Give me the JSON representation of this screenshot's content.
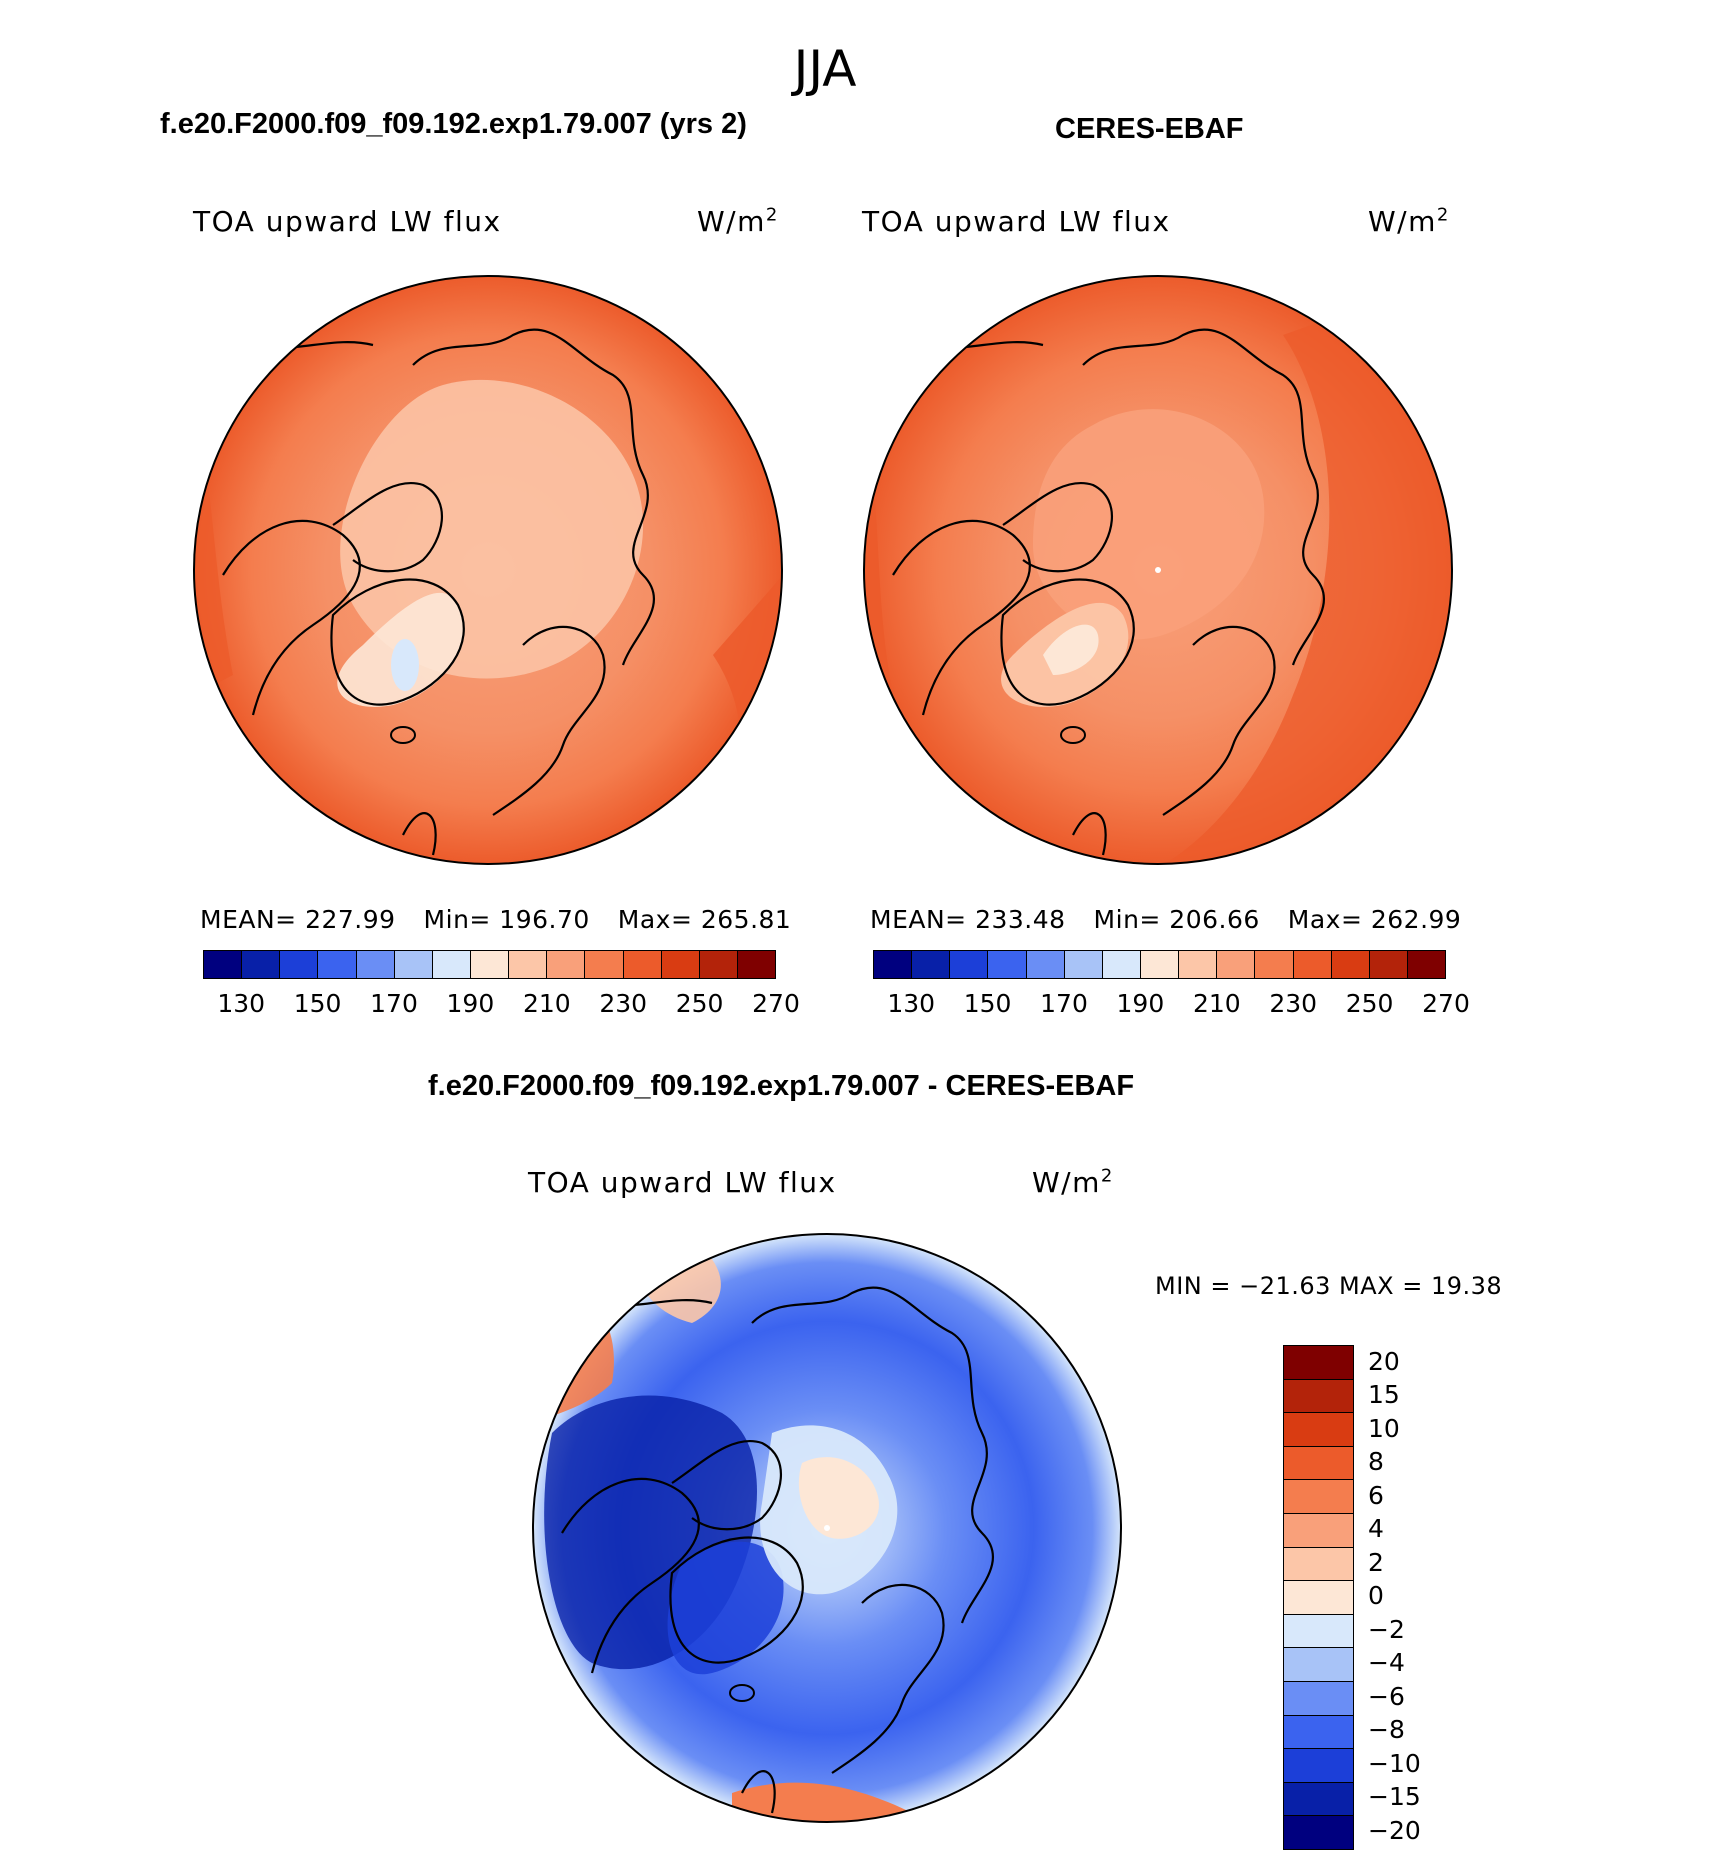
{
  "season": "JJA",
  "panel_left": {
    "case_title": "f.e20.F2000.f09_f09.192.exp1.79.007 (yrs 2)",
    "variable": "TOA upward LW flux",
    "units_base": "W/m",
    "units_exp": "2",
    "mean_label": "MEAN= 227.99",
    "min_label": "Min= 196.70",
    "max_label": "Max= 265.81"
  },
  "panel_right": {
    "case_title": "CERES-EBAF",
    "variable": "TOA upward LW flux",
    "units_base": "W/m",
    "units_exp": "2",
    "mean_label": "MEAN= 233.48",
    "min_label": "Min= 206.66",
    "max_label": "Max= 262.99"
  },
  "panel_diff": {
    "case_title": "f.e20.F2000.f09_f09.192.exp1.79.007 - CERES-EBAF",
    "variable": "TOA upward LW flux",
    "units_base": "W/m",
    "units_exp": "2",
    "minmax_label": "MIN = −21.63 MAX =   19.38"
  },
  "chart_data": [
    {
      "type": "heatmap",
      "projection": "north polar stereographic",
      "title": "f.e20.F2000.f09_f09.192.exp1.79.007 (yrs 2)",
      "variable": "TOA upward LW flux",
      "units": "W/m2",
      "mean": 227.99,
      "min": 196.7,
      "max": 265.81,
      "colorbar_ticks": [
        "130",
        "150",
        "170",
        "190",
        "210",
        "230",
        "250",
        "270"
      ],
      "colorbar_colors": [
        "#00007f",
        "#0820a8",
        "#1c3fd8",
        "#3b63ef",
        "#6a8ef5",
        "#a8c3f7",
        "#d8e8fb",
        "#fde7d6",
        "#fcc6a8",
        "#f9a07a",
        "#f47d4e",
        "#ec5b2b",
        "#d93c12",
        "#b3230a",
        "#7f0000"
      ]
    },
    {
      "type": "heatmap",
      "projection": "north polar stereographic",
      "title": "CERES-EBAF",
      "variable": "TOA upward LW flux",
      "units": "W/m2",
      "mean": 233.48,
      "min": 206.66,
      "max": 262.99,
      "colorbar_ticks": [
        "130",
        "150",
        "170",
        "190",
        "210",
        "230",
        "250",
        "270"
      ],
      "colorbar_colors": [
        "#00007f",
        "#0820a8",
        "#1c3fd8",
        "#3b63ef",
        "#6a8ef5",
        "#a8c3f7",
        "#d8e8fb",
        "#fde7d6",
        "#fcc6a8",
        "#f9a07a",
        "#f47d4e",
        "#ec5b2b",
        "#d93c12",
        "#b3230a",
        "#7f0000"
      ]
    },
    {
      "type": "heatmap",
      "projection": "north polar stereographic",
      "title": "f.e20.F2000.f09_f09.192.exp1.79.007 - CERES-EBAF",
      "variable": "TOA upward LW flux",
      "units": "W/m2",
      "min": -21.63,
      "max": 19.38,
      "colorbar_ticks": [
        "20",
        "15",
        "10",
        "8",
        "6",
        "4",
        "2",
        "0",
        "−2",
        "−4",
        "−6",
        "−8",
        "−10",
        "−15",
        "−20"
      ],
      "colorbar_colors": [
        "#7f0000",
        "#b3230a",
        "#d93c12",
        "#ec5b2b",
        "#f47d4e",
        "#f9a07a",
        "#fcc6a8",
        "#fde7d6",
        "#d8e8fb",
        "#a8c3f7",
        "#6a8ef5",
        "#3b63ef",
        "#1c3fd8",
        "#0820a8",
        "#00007f"
      ]
    }
  ]
}
